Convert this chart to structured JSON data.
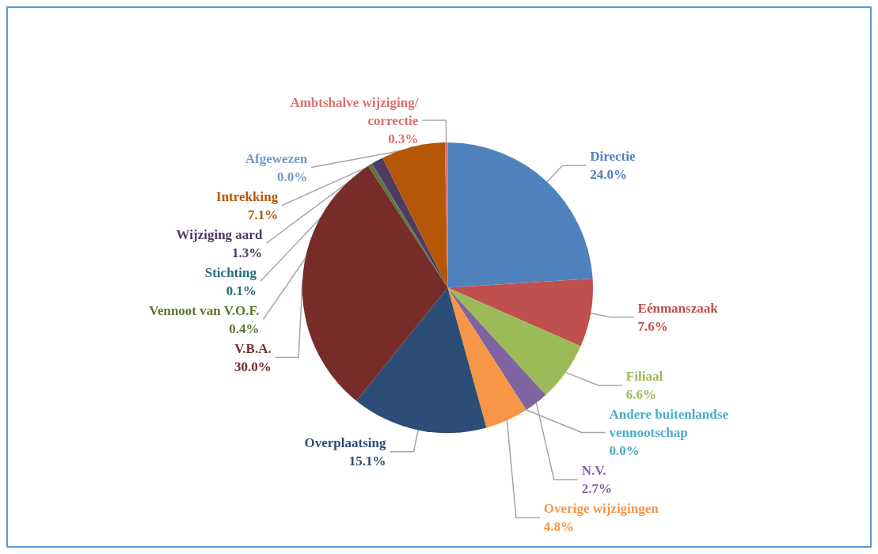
{
  "chart_data": {
    "type": "pie",
    "categories": [
      "Directie",
      "Eénmanszaak",
      "Filiaal",
      "N.V.",
      "Andere buitenlandse vennootschap",
      "Overige wijzigingen",
      "Overplaatsing",
      "V.B.A.",
      "Vennoot van V.O.F.",
      "Stichting",
      "Wijziging aard",
      "Intrekking",
      "Afgewezen",
      "Ambtshalve wijziging/correctie"
    ],
    "values": [
      24.0,
      7.6,
      6.6,
      2.7,
      0.0,
      4.8,
      15.1,
      30.0,
      0.4,
      0.1,
      1.3,
      7.1,
      0.0,
      0.3
    ],
    "value_labels": [
      "24.0%",
      "7.6%",
      "6.6%",
      "2.7%",
      "0.0%",
      "4.8%",
      "15.1%",
      "30.0%",
      "0.4%",
      "0.1%",
      "1.3%",
      "7.1%",
      "0.0%",
      "0.3%"
    ],
    "colors": [
      "#4f81bd",
      "#c0504d",
      "#9bbb59",
      "#8064a2",
      "#4bacc6",
      "#f79646",
      "#2c4d75",
      "#772c2a",
      "#5f7530",
      "#276a7c",
      "#4d3b62",
      "#b65708",
      "#729aca",
      "#d9706e"
    ],
    "legend": false
  }
}
